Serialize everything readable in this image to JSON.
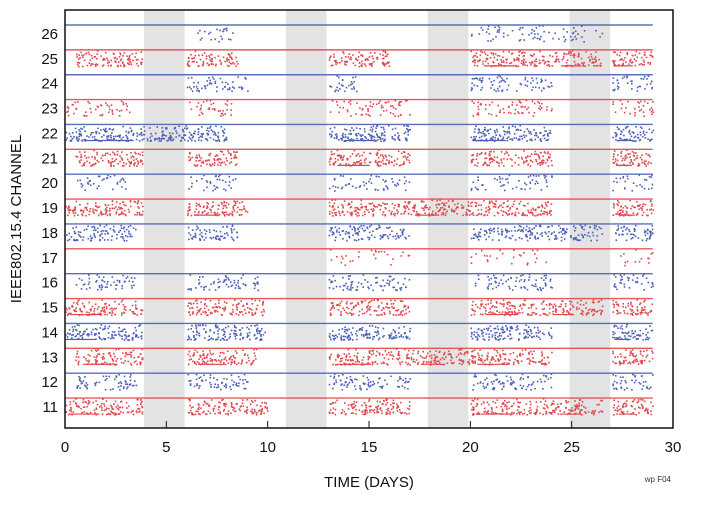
{
  "chart_data": {
    "type": "scatter",
    "title": "",
    "xlabel": "TIME (DAYS)",
    "ylabel": "IEEE802.15.4 CHANNEL",
    "xlim": [
      0,
      30
    ],
    "xticks": [
      0,
      5,
      10,
      15,
      20,
      25,
      30
    ],
    "channels": [
      26,
      25,
      24,
      23,
      22,
      21,
      20,
      19,
      18,
      17,
      16,
      15,
      14,
      13,
      12,
      11
    ],
    "series_colors": {
      "even": "#4a5fb5",
      "odd": "#e0474c"
    },
    "shaded_intervals": [
      [
        3.9,
        5.9
      ],
      [
        10.9,
        12.9
      ],
      [
        17.9,
        19.9
      ],
      [
        24.9,
        26.9
      ]
    ],
    "shade_color": "#e3e3e3",
    "data_end_day": 29,
    "activity": [
      {
        "channel": 26,
        "density": 0.25,
        "periods": [
          [
            6.3,
            8.3
          ],
          [
            20,
            22
          ],
          [
            22,
            26.5
          ]
        ]
      },
      {
        "channel": 25,
        "density": 0.7,
        "periods": [
          [
            0.5,
            3.8
          ],
          [
            6,
            8.5
          ],
          [
            13,
            16
          ],
          [
            20,
            24
          ],
          [
            24,
            26.5
          ],
          [
            27,
            29
          ]
        ]
      },
      {
        "channel": 24,
        "density": 0.4,
        "periods": [
          [
            6,
            9
          ],
          [
            13,
            14.5
          ],
          [
            20,
            24
          ],
          [
            27,
            29
          ]
        ]
      },
      {
        "channel": 23,
        "density": 0.35,
        "periods": [
          [
            0,
            3.2
          ],
          [
            6,
            8.3
          ],
          [
            13,
            17
          ],
          [
            20,
            24
          ],
          [
            27,
            29
          ]
        ]
      },
      {
        "channel": 22,
        "density": 0.75,
        "periods": [
          [
            0,
            6
          ],
          [
            6,
            8
          ],
          [
            13,
            17
          ],
          [
            20,
            24
          ],
          [
            27,
            29
          ]
        ]
      },
      {
        "channel": 21,
        "density": 0.7,
        "periods": [
          [
            0.5,
            3.8
          ],
          [
            6,
            8.5
          ],
          [
            13,
            17
          ],
          [
            20,
            24
          ],
          [
            27,
            29
          ]
        ]
      },
      {
        "channel": 20,
        "density": 0.3,
        "periods": [
          [
            0.5,
            3
          ],
          [
            6,
            8.5
          ],
          [
            13,
            17
          ],
          [
            20,
            24
          ],
          [
            27,
            29
          ]
        ]
      },
      {
        "channel": 19,
        "density": 0.75,
        "periods": [
          [
            0,
            3.8
          ],
          [
            6,
            9
          ],
          [
            13,
            17
          ],
          [
            17,
            20
          ],
          [
            20,
            24
          ],
          [
            27,
            29
          ]
        ]
      },
      {
        "channel": 18,
        "density": 0.6,
        "periods": [
          [
            0,
            3.5
          ],
          [
            6,
            8.5
          ],
          [
            13,
            17
          ],
          [
            20,
            26.5
          ],
          [
            27,
            29
          ]
        ]
      },
      {
        "channel": 17,
        "density": 0.15,
        "periods": [
          [
            13,
            17
          ],
          [
            20,
            24
          ],
          [
            27,
            29
          ]
        ]
      },
      {
        "channel": 16,
        "density": 0.4,
        "periods": [
          [
            0.5,
            3.5
          ],
          [
            6,
            9.5
          ],
          [
            13,
            17
          ],
          [
            20,
            24
          ],
          [
            27,
            29
          ]
        ]
      },
      {
        "channel": 15,
        "density": 0.7,
        "periods": [
          [
            0,
            3.8
          ],
          [
            6,
            9.8
          ],
          [
            13,
            17
          ],
          [
            20,
            24
          ],
          [
            24,
            26.5
          ],
          [
            27,
            29
          ]
        ]
      },
      {
        "channel": 14,
        "density": 0.7,
        "periods": [
          [
            0,
            3.8
          ],
          [
            6,
            10
          ],
          [
            13,
            17
          ],
          [
            20,
            24
          ],
          [
            27,
            29
          ]
        ]
      },
      {
        "channel": 13,
        "density": 0.7,
        "periods": [
          [
            0.5,
            3.8
          ],
          [
            6,
            9.5
          ],
          [
            13,
            17
          ],
          [
            17,
            20
          ],
          [
            20,
            24
          ],
          [
            27,
            29
          ]
        ]
      },
      {
        "channel": 12,
        "density": 0.45,
        "periods": [
          [
            0.5,
            3.5
          ],
          [
            6,
            9
          ],
          [
            13,
            17
          ],
          [
            20,
            24
          ],
          [
            27,
            29
          ]
        ]
      },
      {
        "channel": 11,
        "density": 0.7,
        "periods": [
          [
            0,
            3.8
          ],
          [
            6,
            10
          ],
          [
            13,
            17
          ],
          [
            20,
            24
          ],
          [
            24,
            26.5
          ],
          [
            27,
            29
          ]
        ]
      }
    ],
    "grid": false,
    "legend": "none",
    "figure_note": "wp F04"
  }
}
